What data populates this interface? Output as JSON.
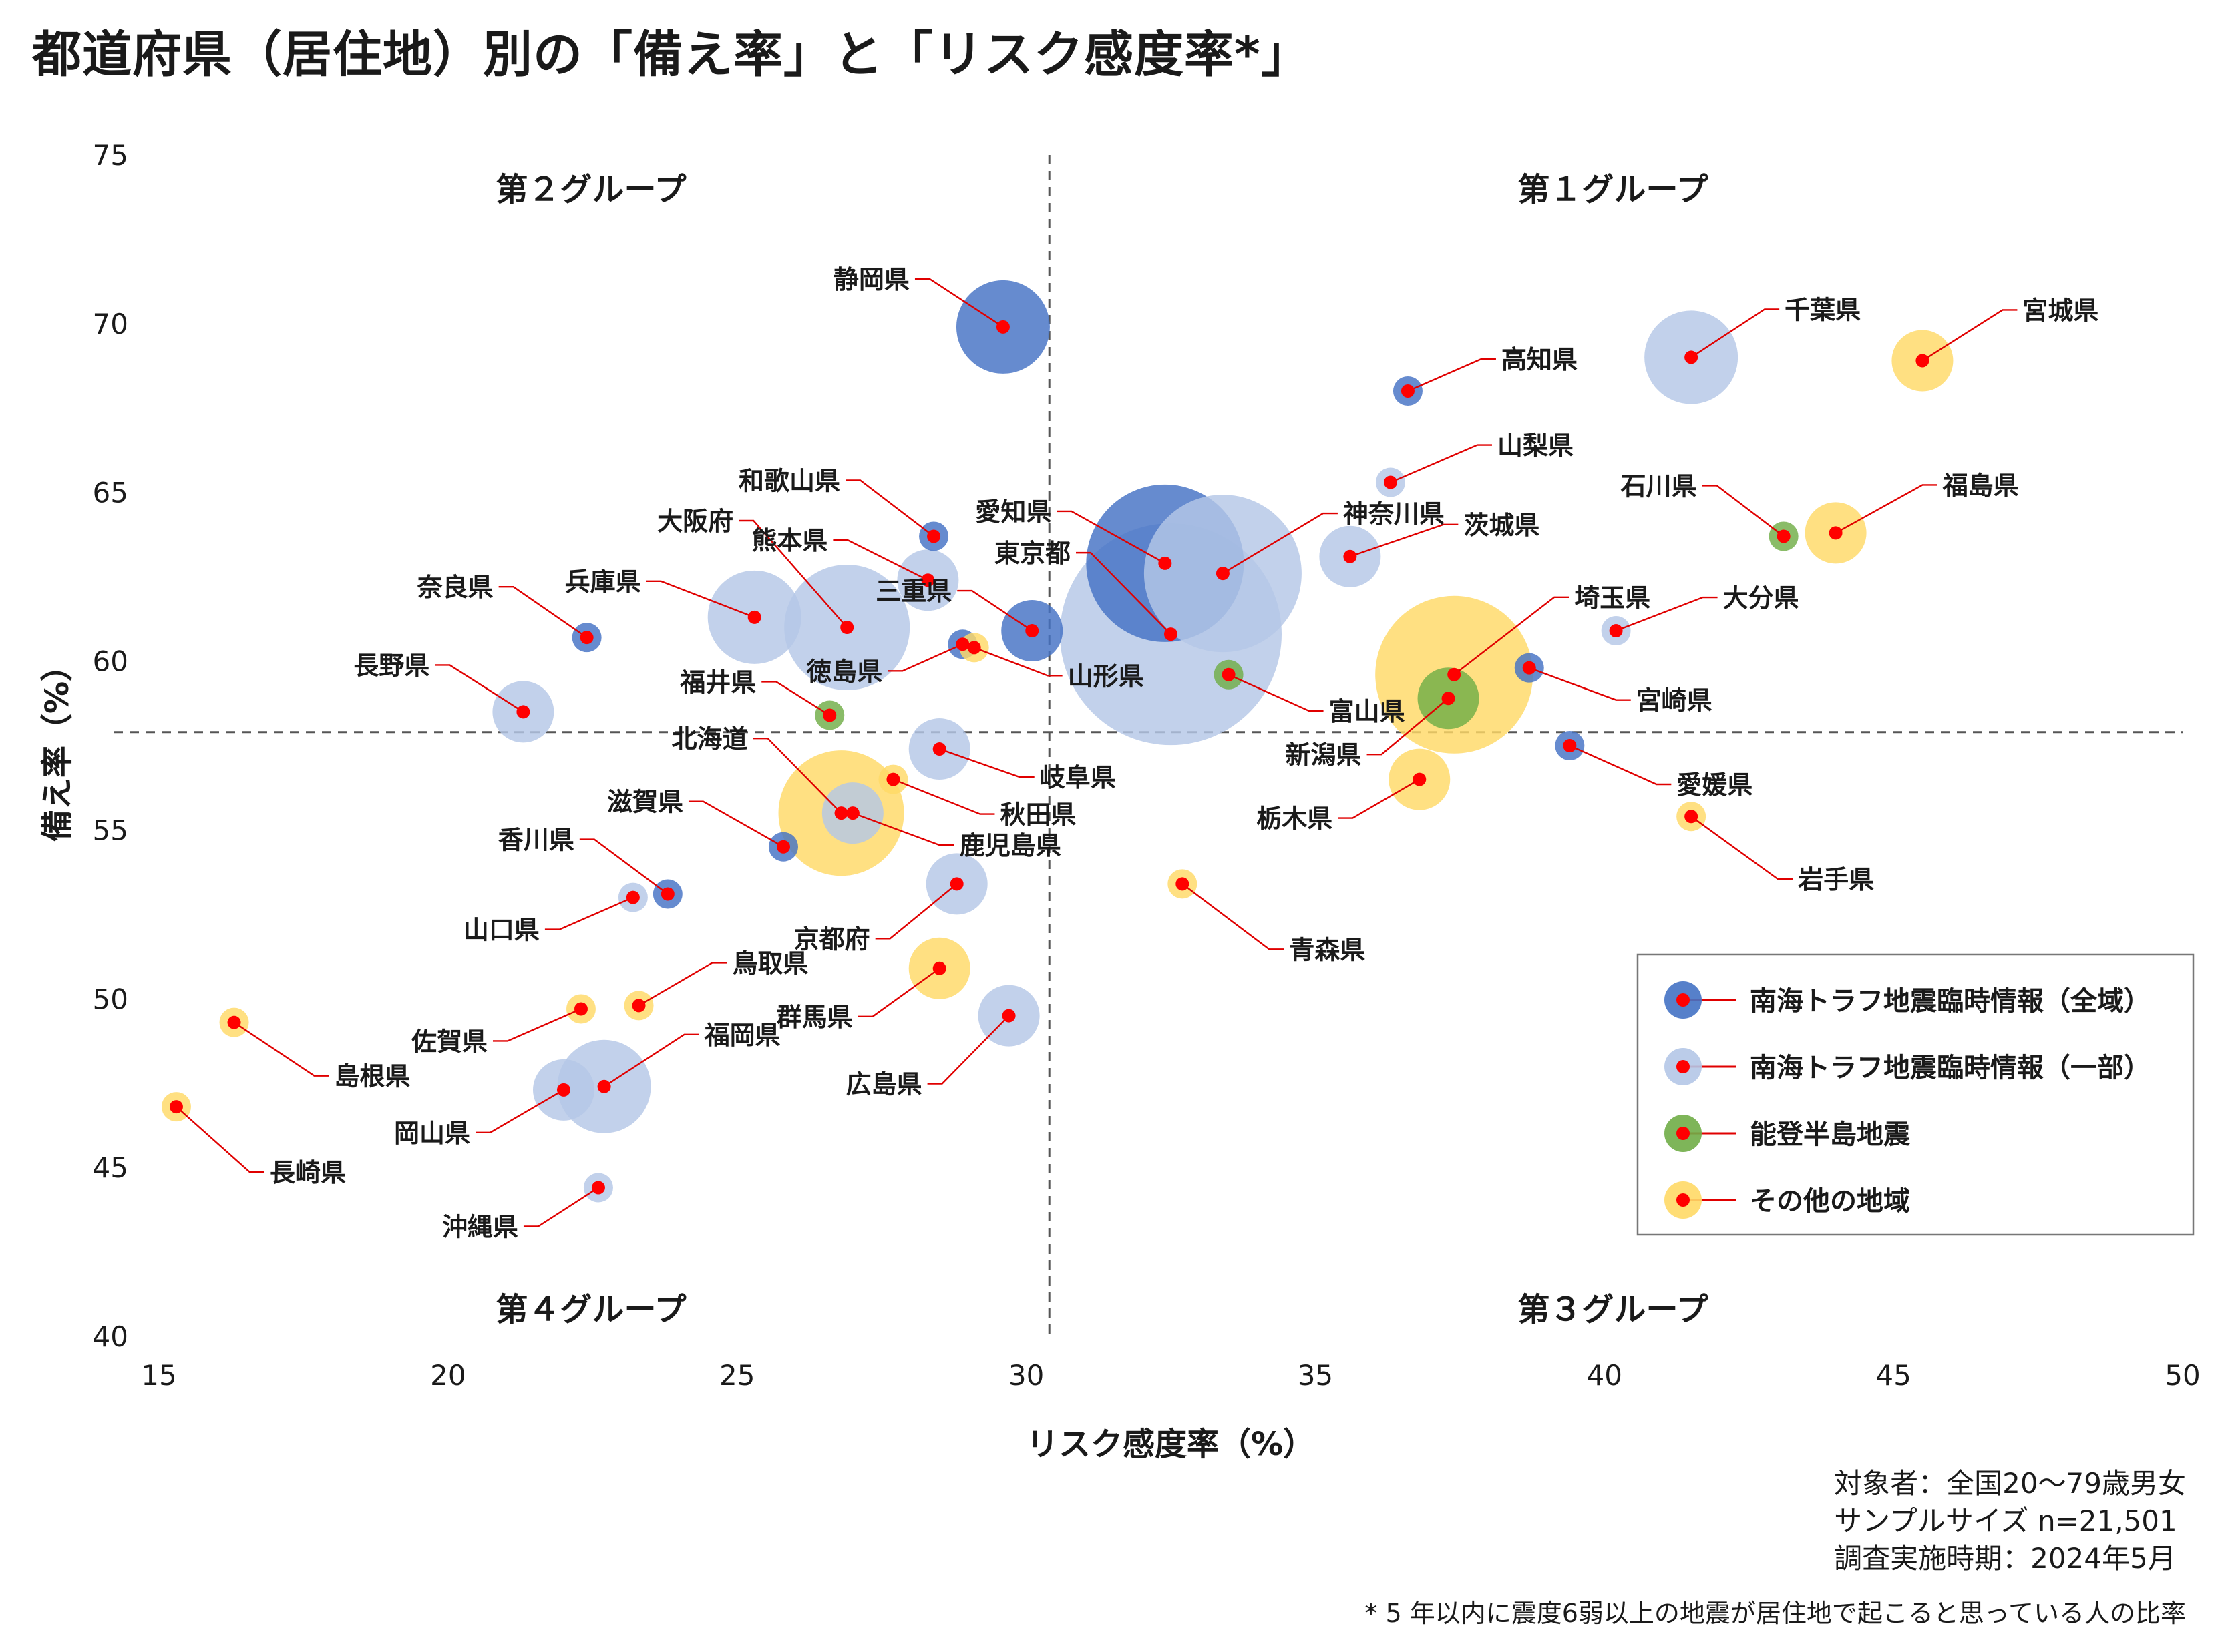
{
  "title": "都道府県（居住地）別の「備え率」と「リスク感度率*」",
  "notes": [
    "対象者：全国20～79歳男女",
    "サンプルサイズ n=21,501",
    "調査実施時期：2024年5月"
  ],
  "footnote": "* 5 年以内に震度6弱以上の地震が居住地で起こると思っている人の比率",
  "chart_data": {
    "type": "bubble",
    "xlabel": "リスク感度率（%）",
    "ylabel": "備え率（%）",
    "xlim": [
      15,
      50
    ],
    "ylim": [
      40,
      75
    ],
    "xticks": [
      15,
      20,
      25,
      30,
      35,
      40,
      45,
      50
    ],
    "yticks": [
      40,
      45,
      50,
      55,
      60,
      65,
      70,
      75
    ],
    "reference_lines": {
      "x": 30.4,
      "y": 57.9
    },
    "quadrants": {
      "top_left": "第２グループ",
      "top_right": "第１グループ",
      "bottom_left": "第４グループ",
      "bottom_right": "第３グループ"
    },
    "legend_position": "bottom-right",
    "series": [
      {
        "name": "南海トラフ地震臨時情報（全域）",
        "color": "#4472C4",
        "points": [
          {
            "label": "静岡県",
            "x": 29.6,
            "y": 69.9,
            "size": 3
          },
          {
            "label": "高知県",
            "x": 36.6,
            "y": 68.0,
            "size": 1
          },
          {
            "label": "愛知県",
            "x": 32.4,
            "y": 62.9,
            "size": 5
          },
          {
            "label": "和歌山県",
            "x": 28.4,
            "y": 63.7,
            "size": 1
          },
          {
            "label": "三重県",
            "x": 30.1,
            "y": 60.9,
            "size": 2
          },
          {
            "label": "奈良県",
            "x": 22.4,
            "y": 60.7,
            "size": 1
          },
          {
            "label": "徳島県",
            "x": 28.9,
            "y": 60.5,
            "size": 1
          },
          {
            "label": "宮崎県",
            "x": 38.7,
            "y": 59.8,
            "size": 1
          },
          {
            "label": "愛媛県",
            "x": 39.4,
            "y": 57.5,
            "size": 1
          },
          {
            "label": "滋賀県",
            "x": 25.8,
            "y": 54.5,
            "size": 1
          },
          {
            "label": "香川県",
            "x": 23.8,
            "y": 53.1,
            "size": 1
          }
        ]
      },
      {
        "name": "南海トラフ地震臨時情報（一部）",
        "color": "#B4C7E7",
        "points": [
          {
            "label": "千葉県",
            "x": 41.5,
            "y": 69.0,
            "size": 3
          },
          {
            "label": "山梨県",
            "x": 36.3,
            "y": 65.3,
            "size": 1
          },
          {
            "label": "神奈川県",
            "x": 33.4,
            "y": 62.6,
            "size": 5
          },
          {
            "label": "茨城県",
            "x": 35.6,
            "y": 63.1,
            "size": 2
          },
          {
            "label": "東京都",
            "x": 32.5,
            "y": 60.8,
            "size": 7
          },
          {
            "label": "大阪府",
            "x": 26.9,
            "y": 61.0,
            "size": 4
          },
          {
            "label": "兵庫県",
            "x": 25.3,
            "y": 61.3,
            "size": 3
          },
          {
            "label": "熊本県",
            "x": 28.3,
            "y": 62.4,
            "size": 2
          },
          {
            "label": "大分県",
            "x": 40.2,
            "y": 60.9,
            "size": 1
          },
          {
            "label": "長野県",
            "x": 21.3,
            "y": 58.5,
            "size": 2
          },
          {
            "label": "岐阜県",
            "x": 28.5,
            "y": 57.4,
            "size": 2
          },
          {
            "label": "鹿児島県",
            "x": 27.0,
            "y": 55.5,
            "size": 2
          },
          {
            "label": "京都府",
            "x": 28.8,
            "y": 53.4,
            "size": 2
          },
          {
            "label": "山口県",
            "x": 23.2,
            "y": 53.0,
            "size": 1
          },
          {
            "label": "広島県",
            "x": 29.7,
            "y": 49.5,
            "size": 2
          },
          {
            "label": "福岡県",
            "x": 22.7,
            "y": 47.4,
            "size": 3
          },
          {
            "label": "岡山県",
            "x": 22.0,
            "y": 47.3,
            "size": 2
          },
          {
            "label": "沖縄県",
            "x": 22.6,
            "y": 44.4,
            "size": 1
          }
        ]
      },
      {
        "name": "能登半島地震",
        "color": "#70AD47",
        "points": [
          {
            "label": "石川県",
            "x": 43.1,
            "y": 63.7,
            "size": 1
          },
          {
            "label": "富山県",
            "x": 33.5,
            "y": 59.6,
            "size": 1
          },
          {
            "label": "新潟県",
            "x": 37.3,
            "y": 58.9,
            "size": 2
          },
          {
            "label": "福井県",
            "x": 26.6,
            "y": 58.4,
            "size": 1
          }
        ]
      },
      {
        "name": "その他の地域",
        "color": "#FFD966",
        "points": [
          {
            "label": "宮城県",
            "x": 45.5,
            "y": 68.9,
            "size": 2
          },
          {
            "label": "福島県",
            "x": 44.0,
            "y": 63.8,
            "size": 2
          },
          {
            "label": "埼玉県",
            "x": 37.4,
            "y": 59.6,
            "size": 5
          },
          {
            "label": "山形県",
            "x": 29.1,
            "y": 60.4,
            "size": 1
          },
          {
            "label": "秋田県",
            "x": 27.7,
            "y": 56.5,
            "size": 1
          },
          {
            "label": "北海道",
            "x": 26.8,
            "y": 55.5,
            "size": 4
          },
          {
            "label": "栃木県",
            "x": 36.8,
            "y": 56.5,
            "size": 2
          },
          {
            "label": "岩手県",
            "x": 41.5,
            "y": 55.4,
            "size": 1
          },
          {
            "label": "青森県",
            "x": 32.7,
            "y": 53.4,
            "size": 1
          },
          {
            "label": "群馬県",
            "x": 28.5,
            "y": 50.9,
            "size": 2
          },
          {
            "label": "鳥取県",
            "x": 23.3,
            "y": 49.8,
            "size": 1
          },
          {
            "label": "佐賀県",
            "x": 22.3,
            "y": 49.7,
            "size": 1
          },
          {
            "label": "島根県",
            "x": 16.3,
            "y": 49.3,
            "size": 1
          },
          {
            "label": "長崎県",
            "x": 15.3,
            "y": 46.8,
            "size": 1
          }
        ]
      }
    ]
  }
}
